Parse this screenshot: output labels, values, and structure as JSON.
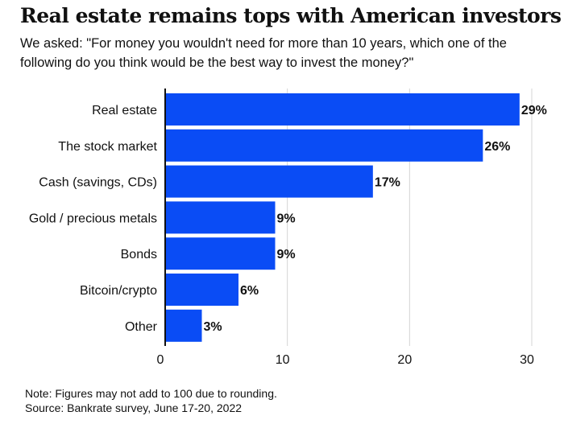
{
  "header": {
    "title": "Real estate remains tops with American investors",
    "subtitle": "We asked: \"For money you wouldn't need for more than 10 years, which one of the following do you think would be the best way to invest the money?\""
  },
  "footer": {
    "note": "Note: Figures may not add to 100 due to rounding.",
    "source": "Source: Bankrate survey, June 17-20, 2022"
  },
  "colors": {
    "bar": "#0a4cf5",
    "grid": "#d4d4d4",
    "axis": "#111111",
    "text": "#111111"
  },
  "chart_data": {
    "type": "bar",
    "orientation": "horizontal",
    "categories": [
      "Real estate",
      "The stock market",
      "Cash (savings, CDs)",
      "Gold / precious metals",
      "Bonds",
      "Bitcoin/crypto",
      "Other"
    ],
    "values": [
      29,
      26,
      17,
      9,
      9,
      6,
      3
    ],
    "value_labels": [
      "29%",
      "26%",
      "17%",
      "9%",
      "9%",
      "6%",
      "3%"
    ],
    "xlim": [
      0,
      30
    ],
    "xticks": [
      0,
      10,
      20,
      30
    ],
    "grid": true
  }
}
